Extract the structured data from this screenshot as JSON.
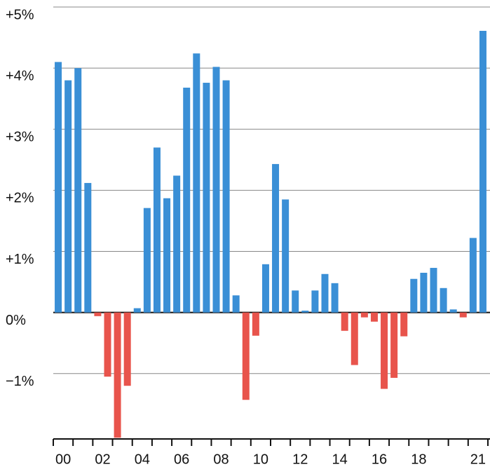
{
  "chart_data": {
    "type": "bar",
    "categories": [
      "00",
      null,
      null,
      null,
      "02",
      null,
      null,
      null,
      "04",
      null,
      null,
      null,
      "06",
      null,
      null,
      null,
      "08",
      null,
      null,
      null,
      "10",
      null,
      null,
      null,
      "12",
      null,
      null,
      null,
      "14",
      null,
      null,
      null,
      "16",
      null,
      null,
      null,
      "18",
      null,
      null,
      null,
      null,
      null,
      "21",
      null
    ],
    "values": [
      4.1,
      3.8,
      4.0,
      2.12,
      -0.06,
      -1.05,
      -2.05,
      -1.2,
      0.07,
      1.71,
      2.7,
      1.87,
      2.24,
      3.68,
      4.24,
      3.76,
      4.02,
      3.8,
      0.28,
      -1.43,
      -0.38,
      0.79,
      2.43,
      1.85,
      0.36,
      0.03,
      0.36,
      0.63,
      0.48,
      -0.3,
      -0.86,
      -0.08,
      -0.15,
      -1.25,
      -1.07,
      -0.39,
      0.55,
      0.65,
      0.73,
      0.4,
      0.05,
      -0.08,
      1.22,
      4.61
    ],
    "colors": {
      "positive": "#3a8fd6",
      "negative": "#e8544c"
    },
    "ylim": [
      -2.07,
      5
    ],
    "yticks": [
      {
        "value": -1,
        "label": "−1%"
      },
      {
        "value": 0,
        "label": "0%"
      },
      {
        "value": 1,
        "label": "+1%"
      },
      {
        "value": 2,
        "label": "+2%"
      },
      {
        "value": 3,
        "label": "+3%"
      },
      {
        "value": 4,
        "label": "+4%"
      },
      {
        "value": 5,
        "label": "+5%"
      }
    ],
    "grid": true
  }
}
